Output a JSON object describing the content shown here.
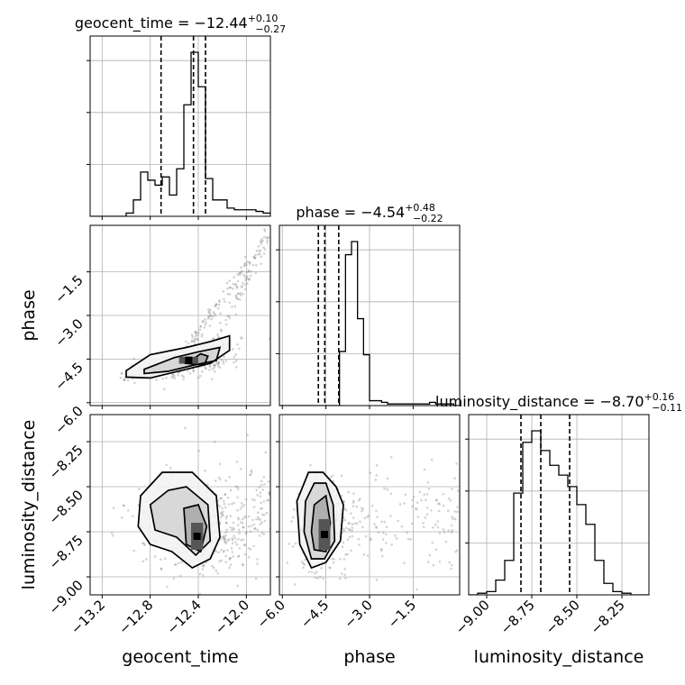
{
  "chart_data": {
    "type": "corner",
    "parameters": [
      "geocent_time",
      "phase",
      "luminosity_distance"
    ],
    "grid": true,
    "diagonal_titles": [
      {
        "base": "geocent_time = −12.44",
        "sup": "+0.10",
        "sub": "−0.27"
      },
      {
        "base": "phase = −4.54",
        "sup": "+0.48",
        "sub": "−0.22"
      },
      {
        "base": "luminosity_distance = −8.70",
        "sup": "+0.16",
        "sub": "−0.11"
      }
    ],
    "ranges": {
      "geocent_time": [
        -13.3,
        -11.8
      ],
      "phase": [
        -6.1,
        0.1
      ],
      "luminosity_distance": [
        -9.1,
        -8.1
      ]
    },
    "ticks": {
      "geocent_time": {
        "values": [
          -13.2,
          -12.8,
          -12.4,
          -12.0
        ],
        "labels": [
          "−13.2",
          "−12.8",
          "−12.4",
          "−12.0"
        ]
      },
      "phase": {
        "values": [
          -6.0,
          -4.5,
          -3.0,
          -1.5
        ],
        "labels": [
          "−6.0",
          "−4.5",
          "−3.0",
          "−1.5"
        ]
      },
      "luminosity_distance": {
        "values": [
          -9.0,
          -8.75,
          -8.5,
          -8.25
        ],
        "labels": [
          "−9.00",
          "−8.75",
          "−8.50",
          "−8.25"
        ]
      }
    },
    "histograms": [
      {
        "param": "geocent_time",
        "edges_from": -13.3,
        "edges_to": -11.8,
        "counts": [
          0,
          0,
          0,
          0,
          0,
          2,
          10,
          27,
          22,
          19,
          24,
          13,
          29,
          68,
          100,
          79,
          23,
          10,
          10,
          5,
          4,
          4,
          4,
          3,
          2
        ]
      },
      {
        "param": "phase",
        "edges_from": -6.1,
        "edges_to": 0.1,
        "counts": [
          0,
          0,
          0,
          0,
          0,
          0,
          0,
          0,
          0,
          0,
          33,
          92,
          100,
          53,
          31,
          3,
          3,
          2,
          1,
          1,
          1,
          1,
          1,
          1,
          1,
          2,
          1,
          1,
          1,
          0
        ]
      },
      {
        "param": "luminosity_distance",
        "edges_from": -9.1,
        "edges_to": -8.1,
        "counts": [
          0,
          1,
          2,
          9,
          21,
          62,
          93,
          100,
          88,
          79,
          73,
          66,
          55,
          43,
          21,
          7,
          2,
          1,
          0,
          0
        ]
      }
    ],
    "quantiles": {
      "geocent_time": [
        -12.71,
        -12.44,
        -12.34
      ],
      "phase": [
        -4.76,
        -4.54,
        -4.06
      ],
      "luminosity_distance": [
        -8.81,
        -8.7,
        -8.54
      ]
    },
    "contours_2d": [
      {
        "x": "geocent_time",
        "y": "phase",
        "levels": [
          [
            [
              -13.0,
              -4.9
            ],
            [
              -12.8,
              -4.35
            ],
            [
              -12.5,
              -4.1
            ],
            [
              -12.3,
              -3.9
            ],
            [
              -12.14,
              -3.7
            ],
            [
              -12.14,
              -4.2
            ],
            [
              -12.3,
              -4.65
            ],
            [
              -12.55,
              -4.9
            ],
            [
              -12.8,
              -5.15
            ],
            [
              -13.0,
              -5.12
            ]
          ],
          [
            [
              -12.85,
              -4.85
            ],
            [
              -12.6,
              -4.45
            ],
            [
              -12.4,
              -4.25
            ],
            [
              -12.22,
              -4.1
            ],
            [
              -12.25,
              -4.55
            ],
            [
              -12.45,
              -4.72
            ],
            [
              -12.65,
              -4.92
            ],
            [
              -12.85,
              -5.0
            ]
          ],
          [
            [
              -12.5,
              -4.65
            ],
            [
              -12.38,
              -4.32
            ],
            [
              -12.32,
              -4.4
            ],
            [
              -12.35,
              -4.7
            ]
          ]
        ]
      },
      {
        "x": "geocent_time",
        "y": "luminosity_distance",
        "levels": [
          [
            [
              -12.88,
              -8.55
            ],
            [
              -12.7,
              -8.42
            ],
            [
              -12.45,
              -8.42
            ],
            [
              -12.25,
              -8.55
            ],
            [
              -12.22,
              -8.78
            ],
            [
              -12.3,
              -8.9
            ],
            [
              -12.45,
              -8.95
            ],
            [
              -12.62,
              -8.86
            ],
            [
              -12.8,
              -8.82
            ],
            [
              -12.9,
              -8.72
            ]
          ],
          [
            [
              -12.8,
              -8.6
            ],
            [
              -12.65,
              -8.52
            ],
            [
              -12.5,
              -8.5
            ],
            [
              -12.32,
              -8.6
            ],
            [
              -12.3,
              -8.8
            ],
            [
              -12.42,
              -8.88
            ],
            [
              -12.58,
              -8.78
            ],
            [
              -12.76,
              -8.74
            ]
          ],
          [
            [
              -12.52,
              -8.62
            ],
            [
              -12.4,
              -8.6
            ],
            [
              -12.33,
              -8.72
            ],
            [
              -12.38,
              -8.86
            ],
            [
              -12.5,
              -8.82
            ]
          ]
        ]
      },
      {
        "x": "phase",
        "y": "luminosity_distance",
        "levels": [
          [
            [
              -5.5,
              -8.58
            ],
            [
              -5.1,
              -8.42
            ],
            [
              -4.6,
              -8.42
            ],
            [
              -4.15,
              -8.5
            ],
            [
              -3.9,
              -8.6
            ],
            [
              -4.0,
              -8.8
            ],
            [
              -4.5,
              -8.92
            ],
            [
              -5.0,
              -8.95
            ],
            [
              -5.4,
              -8.82
            ]
          ],
          [
            [
              -5.2,
              -8.58
            ],
            [
              -4.9,
              -8.48
            ],
            [
              -4.5,
              -8.48
            ],
            [
              -4.25,
              -8.6
            ],
            [
              -4.2,
              -8.8
            ],
            [
              -4.55,
              -8.9
            ],
            [
              -5.0,
              -8.9
            ],
            [
              -5.25,
              -8.75
            ]
          ],
          [
            [
              -4.9,
              -8.6
            ],
            [
              -4.5,
              -8.55
            ],
            [
              -4.35,
              -8.7
            ],
            [
              -4.5,
              -8.86
            ],
            [
              -4.9,
              -8.85
            ],
            [
              -5.0,
              -8.75
            ]
          ]
        ]
      }
    ],
    "density_cores": [
      {
        "x": "geocent_time",
        "y": "phase",
        "x_range": [
          -12.56,
          -12.4
        ],
        "y_range": [
          -4.66,
          -4.42
        ]
      },
      {
        "x": "geocent_time",
        "y": "luminosity_distance",
        "x_range": [
          -12.46,
          -12.36
        ],
        "y_range": [
          -8.85,
          -8.7
        ]
      },
      {
        "x": "phase",
        "y": "luminosity_distance",
        "x_range": [
          -4.75,
          -4.35
        ],
        "y_range": [
          -8.85,
          -8.68
        ]
      }
    ]
  }
}
